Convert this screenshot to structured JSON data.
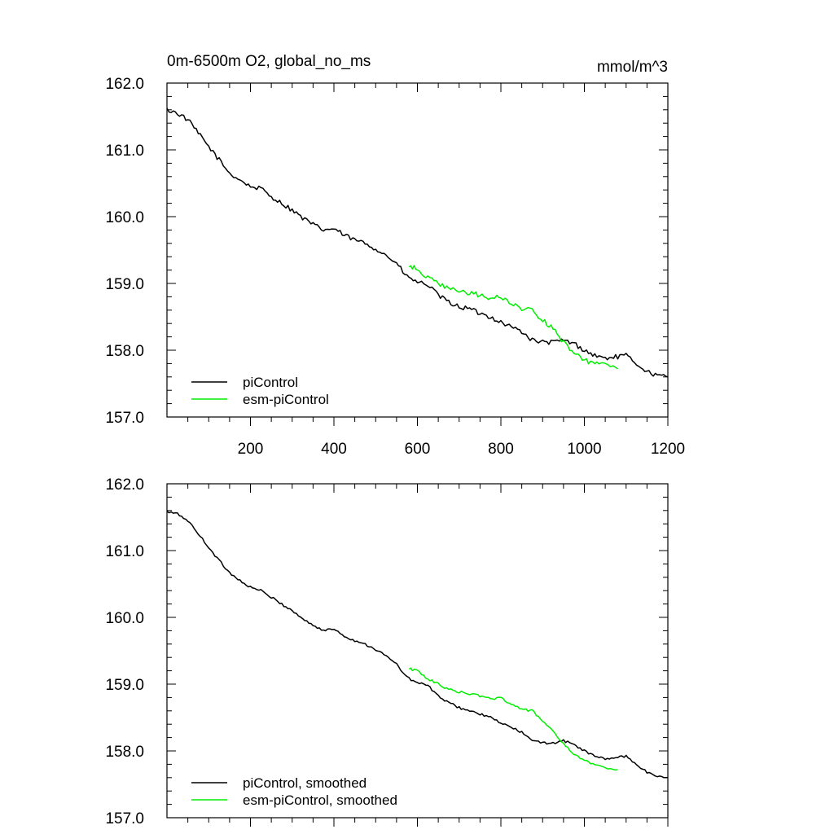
{
  "title_left": "0m-6500m O2, global_no_ms",
  "title_right": "mmol/m^3",
  "colors": {
    "piControl": "#000000",
    "esm-piControl": "#00ee00"
  },
  "chart_data": [
    {
      "type": "line",
      "title": "0m-6500m O2, global_no_ms",
      "units": "mmol/m^3",
      "xlim": [
        0,
        1200
      ],
      "ylim": [
        157.0,
        162.0
      ],
      "xticks": [
        200,
        400,
        600,
        800,
        1000,
        1200
      ],
      "xtick_labels": [
        "200",
        "400",
        "600",
        "800",
        "1000",
        "1200"
      ],
      "xticks_shown": true,
      "yticks": [
        157.0,
        158.0,
        159.0,
        160.0,
        161.0,
        162.0
      ],
      "ytick_labels": [
        "157.0",
        "158.0",
        "159.0",
        "160.0",
        "161.0",
        "162.0"
      ],
      "legend_position": "bottom-left",
      "grid": false,
      "noise": 0.035,
      "series": [
        {
          "name": "piControl",
          "color": "#000000",
          "x": [
            0,
            25,
            50,
            75,
            100,
            125,
            150,
            175,
            200,
            225,
            250,
            275,
            300,
            325,
            350,
            375,
            400,
            425,
            450,
            475,
            500,
            525,
            550,
            575,
            600,
            625,
            650,
            675,
            700,
            725,
            750,
            775,
            800,
            825,
            850,
            875,
            900,
            925,
            950,
            975,
            1000,
            1025,
            1050,
            1075,
            1100,
            1125,
            1150,
            1175,
            1200
          ],
          "y": [
            161.6,
            161.55,
            161.45,
            161.25,
            161.05,
            160.85,
            160.65,
            160.55,
            160.45,
            160.42,
            160.3,
            160.2,
            160.1,
            159.98,
            159.88,
            159.8,
            159.82,
            159.72,
            159.65,
            159.6,
            159.52,
            159.42,
            159.3,
            159.1,
            159.02,
            158.98,
            158.82,
            158.72,
            158.65,
            158.62,
            158.55,
            158.5,
            158.42,
            158.35,
            158.28,
            158.15,
            158.12,
            158.12,
            158.15,
            158.1,
            158.0,
            157.92,
            157.88,
            157.9,
            157.92,
            157.8,
            157.68,
            157.62,
            157.6
          ]
        },
        {
          "name": "esm-piControl",
          "color": "#00ee00",
          "x": [
            580,
            600,
            625,
            650,
            675,
            700,
            725,
            750,
            775,
            800,
            825,
            850,
            875,
            900,
            925,
            950,
            975,
            1000,
            1025,
            1050,
            1080
          ],
          "y": [
            159.25,
            159.22,
            159.08,
            159.0,
            158.92,
            158.88,
            158.86,
            158.82,
            158.78,
            158.8,
            158.7,
            158.62,
            158.6,
            158.45,
            158.32,
            158.12,
            157.95,
            157.85,
            157.8,
            157.78,
            157.72
          ]
        }
      ]
    },
    {
      "type": "line",
      "xlim": [
        0,
        1200
      ],
      "ylim": [
        157.0,
        162.0
      ],
      "xticks": [
        200,
        400,
        600,
        800,
        1000,
        1200
      ],
      "xticks_shown": false,
      "yticks": [
        157.0,
        158.0,
        159.0,
        160.0,
        161.0,
        162.0
      ],
      "ytick_labels": [
        "157.0",
        "158.0",
        "159.0",
        "160.0",
        "161.0",
        "162.0"
      ],
      "legend_position": "bottom-left",
      "grid": false,
      "noise": 0.018,
      "series": [
        {
          "name": "piControl, smoothed",
          "color": "#000000",
          "x": [
            0,
            25,
            50,
            75,
            100,
            125,
            150,
            175,
            200,
            225,
            250,
            275,
            300,
            325,
            350,
            375,
            400,
            425,
            450,
            475,
            500,
            525,
            550,
            575,
            600,
            625,
            650,
            675,
            700,
            725,
            750,
            775,
            800,
            825,
            850,
            875,
            900,
            925,
            950,
            975,
            1000,
            1025,
            1050,
            1075,
            1100,
            1125,
            1150,
            1175,
            1200
          ],
          "y": [
            161.58,
            161.55,
            161.45,
            161.25,
            161.05,
            160.85,
            160.67,
            160.55,
            160.45,
            160.4,
            160.3,
            160.2,
            160.1,
            159.98,
            159.88,
            159.8,
            159.83,
            159.72,
            159.65,
            159.6,
            159.52,
            159.42,
            159.3,
            159.1,
            159.02,
            158.98,
            158.82,
            158.72,
            158.65,
            158.6,
            158.55,
            158.5,
            158.42,
            158.35,
            158.28,
            158.15,
            158.12,
            158.12,
            158.15,
            158.1,
            158.0,
            157.92,
            157.88,
            157.9,
            157.92,
            157.8,
            157.68,
            157.62,
            157.6
          ]
        },
        {
          "name": "esm-piControl, smoothed",
          "color": "#00ee00",
          "x": [
            580,
            600,
            625,
            650,
            675,
            700,
            725,
            750,
            775,
            800,
            825,
            850,
            875,
            900,
            925,
            950,
            975,
            1000,
            1025,
            1050,
            1080
          ],
          "y": [
            159.23,
            159.2,
            159.08,
            159.0,
            158.92,
            158.88,
            158.86,
            158.82,
            158.78,
            158.8,
            158.7,
            158.62,
            158.6,
            158.45,
            158.3,
            158.1,
            157.95,
            157.85,
            157.8,
            157.75,
            157.72
          ]
        }
      ]
    }
  ]
}
